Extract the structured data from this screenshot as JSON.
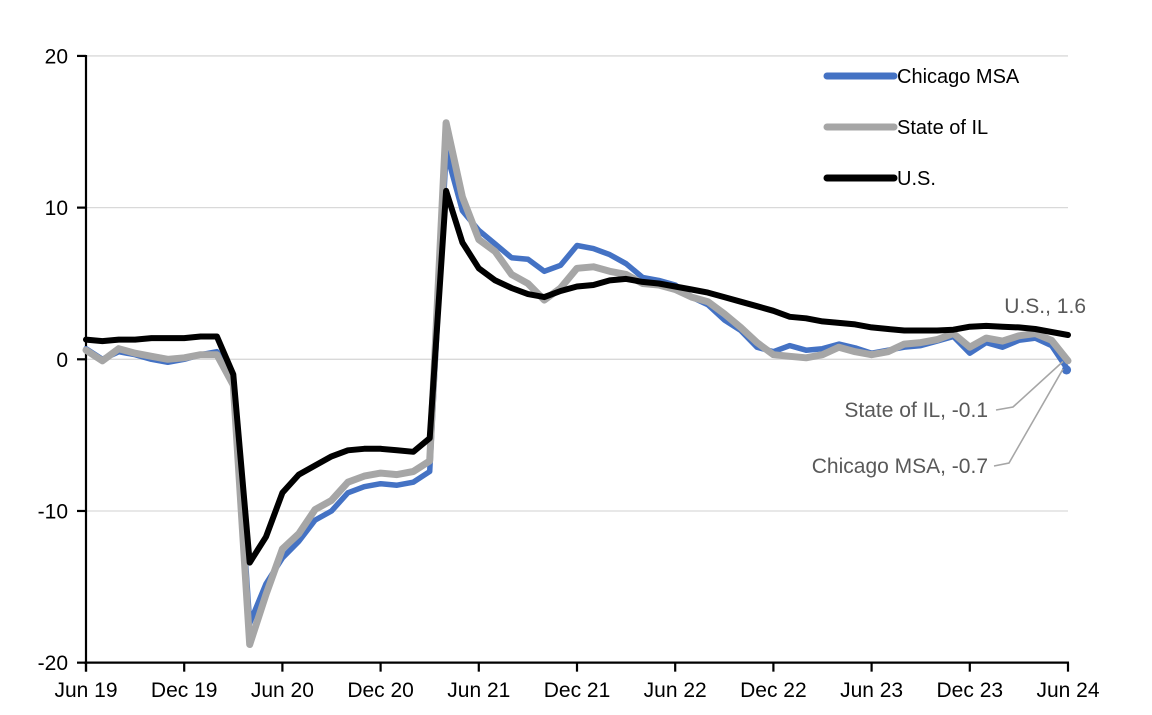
{
  "chart_data": {
    "type": "line",
    "title": "",
    "xlabel": "",
    "ylabel": "",
    "ylim": [
      -20,
      20
    ],
    "grid": true,
    "legend_position": "top-right",
    "x": [
      "Jun-19",
      "Jul-19",
      "Aug-19",
      "Sep-19",
      "Oct-19",
      "Nov-19",
      "Dec-19",
      "Jan-20",
      "Feb-20",
      "Mar-20",
      "Apr-20",
      "May-20",
      "Jun-20",
      "Jul-20",
      "Aug-20",
      "Sep-20",
      "Oct-20",
      "Nov-20",
      "Dec-20",
      "Jan-21",
      "Feb-21",
      "Mar-21",
      "Apr-21",
      "May-21",
      "Jun-21",
      "Jul-21",
      "Aug-21",
      "Sep-21",
      "Oct-21",
      "Nov-21",
      "Dec-21",
      "Jan-22",
      "Feb-22",
      "Mar-22",
      "Apr-22",
      "May-22",
      "Jun-22",
      "Jul-22",
      "Aug-22",
      "Sep-22",
      "Oct-22",
      "Nov-22",
      "Dec-22",
      "Jan-23",
      "Feb-23",
      "Mar-23",
      "Apr-23",
      "May-23",
      "Jun-23",
      "Jul-23",
      "Aug-23",
      "Sep-23",
      "Oct-23",
      "Nov-23",
      "Dec-23",
      "Jan-24",
      "Feb-24",
      "Mar-24",
      "Apr-24",
      "May-24",
      "Jun-24"
    ],
    "series": [
      {
        "name": "Chicago MSA",
        "color": "#4472C4",
        "stroke_width": 5.5,
        "end_marker": true,
        "values": [
          0.7,
          0.0,
          0.5,
          0.3,
          0.0,
          -0.2,
          0.0,
          0.3,
          0.5,
          -1.3,
          -17.4,
          -14.8,
          -13.1,
          -12.0,
          -10.6,
          -10.0,
          -8.8,
          -8.4,
          -8.2,
          -8.3,
          -8.1,
          -7.4,
          13.7,
          9.8,
          8.5,
          7.6,
          6.7,
          6.6,
          5.8,
          6.2,
          7.5,
          7.3,
          6.9,
          6.3,
          5.4,
          5.2,
          4.9,
          4.1,
          3.6,
          2.6,
          1.9,
          0.8,
          0.5,
          0.9,
          0.6,
          0.7,
          1.0,
          0.75,
          0.4,
          0.6,
          0.8,
          0.9,
          1.2,
          1.5,
          0.4,
          1.1,
          0.8,
          1.25,
          1.4,
          0.9,
          -0.7
        ]
      },
      {
        "name": "State of IL",
        "color": "#A6A6A6",
        "stroke_width": 7,
        "end_marker": false,
        "values": [
          0.6,
          -0.1,
          0.7,
          0.4,
          0.2,
          0.0,
          0.1,
          0.3,
          0.3,
          -1.7,
          -18.8,
          -15.5,
          -12.5,
          -11.5,
          -9.9,
          -9.3,
          -8.1,
          -7.7,
          -7.5,
          -7.6,
          -7.4,
          -6.7,
          15.6,
          10.7,
          7.9,
          7.1,
          5.6,
          5.0,
          3.9,
          4.7,
          6.0,
          6.1,
          5.8,
          5.6,
          5.0,
          4.9,
          4.6,
          4.1,
          3.8,
          3.0,
          2.1,
          1.1,
          0.3,
          0.2,
          0.1,
          0.3,
          0.8,
          0.5,
          0.3,
          0.5,
          1.0,
          1.1,
          1.3,
          1.7,
          0.8,
          1.4,
          1.2,
          1.55,
          1.7,
          1.25,
          -0.1
        ]
      },
      {
        "name": "U.S.",
        "color": "#000000",
        "stroke_width": 6,
        "end_marker": false,
        "values": [
          1.3,
          1.2,
          1.3,
          1.3,
          1.4,
          1.4,
          1.4,
          1.5,
          1.5,
          -1.0,
          -13.4,
          -11.7,
          -8.8,
          -7.6,
          -7.0,
          -6.4,
          -6.0,
          -5.9,
          -5.9,
          -6.0,
          -6.1,
          -5.2,
          11.1,
          7.7,
          6.0,
          5.2,
          4.7,
          4.3,
          4.1,
          4.5,
          4.8,
          4.9,
          5.2,
          5.3,
          5.1,
          5.0,
          4.8,
          4.6,
          4.4,
          4.1,
          3.8,
          3.5,
          3.2,
          2.8,
          2.7,
          2.5,
          2.4,
          2.3,
          2.1,
          2.0,
          1.9,
          1.9,
          1.9,
          1.95,
          2.15,
          2.2,
          2.15,
          2.1,
          2.0,
          1.8,
          1.6
        ]
      }
    ],
    "y_ticks": [
      {
        "label": "20",
        "value": 20
      },
      {
        "label": "10",
        "value": 10
      },
      {
        "label": "0",
        "value": 0
      },
      {
        "label": "-10",
        "value": -10
      },
      {
        "label": "-20",
        "value": -20
      }
    ],
    "y_gridline_values": [
      20,
      10,
      0,
      -10
    ],
    "x_ticks": [
      {
        "label": "Jun 19",
        "month_index": 0
      },
      {
        "label": "Dec 19",
        "month_index": 6
      },
      {
        "label": "Jun 20",
        "month_index": 12
      },
      {
        "label": "Dec 20",
        "month_index": 18
      },
      {
        "label": "Jun 21",
        "month_index": 24
      },
      {
        "label": "Dec 21",
        "month_index": 30
      },
      {
        "label": "Jun 22",
        "month_index": 36
      },
      {
        "label": "Dec 22",
        "month_index": 42
      },
      {
        "label": "Jun 23",
        "month_index": 48
      },
      {
        "label": "Dec 23",
        "month_index": 54
      },
      {
        "label": "Jun 24",
        "month_index": 60
      }
    ],
    "annotations": [
      {
        "text": "U.S., 1.6"
      },
      {
        "text": "State of IL, -0.1"
      },
      {
        "text": "Chicago MSA, -0.7"
      }
    ]
  },
  "legend": {
    "items": [
      {
        "label": "Chicago MSA",
        "color": "#4472C4"
      },
      {
        "label": "State of IL",
        "color": "#A6A6A6"
      },
      {
        "label": "U.S.",
        "color": "#000000"
      }
    ]
  },
  "colors": {
    "background": "#ffffff",
    "gridline": "#D9D9D9",
    "axis": "#000000",
    "annotation_text": "#595959",
    "leader_line": "#A6A6A6"
  }
}
